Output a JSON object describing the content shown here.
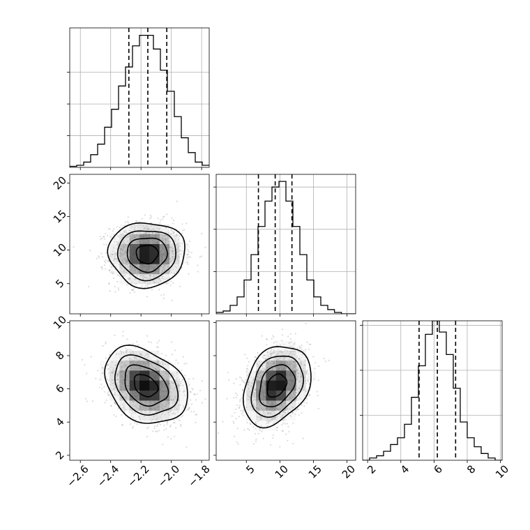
{
  "chart_data": {
    "type": "corner",
    "parameters": [
      {
        "lim": [
          -2.67,
          -1.75
        ],
        "ticks": [
          -2.6,
          -2.4,
          -2.2,
          -2.0,
          -1.8
        ],
        "tick_labels": [
          "−2.6",
          "−2.4",
          "−2.2",
          "−2.0",
          "−1.8"
        ],
        "quantiles": [
          -2.28,
          -2.155,
          -2.03
        ],
        "hist": {
          "edges": [
            -2.67,
            -2.624,
            -2.578,
            -2.532,
            -2.486,
            -2.44,
            -2.394,
            -2.348,
            -2.302,
            -2.256,
            -2.21,
            -2.164,
            -2.118,
            -2.072,
            -2.026,
            -1.98,
            -1.934,
            -1.888,
            -1.842,
            -1.796,
            -1.75
          ],
          "counts": [
            1,
            2,
            5,
            12,
            22,
            38,
            55,
            77,
            95,
            115,
            125,
            125,
            112,
            92,
            72,
            48,
            28,
            14,
            5,
            2
          ]
        },
        "hist_ylim": [
          0,
          132
        ],
        "hist_yticks": [
          30,
          60,
          90
        ]
      },
      {
        "lim": [
          0.5,
          21.3
        ],
        "ticks": [
          5,
          10,
          15,
          20
        ],
        "tick_labels": [
          "5",
          "10",
          "15",
          "20"
        ],
        "quantiles": [
          6.8,
          9.3,
          11.8
        ],
        "hist": {
          "edges": [
            0.5,
            1.54,
            2.58,
            3.62,
            4.66,
            5.7,
            6.74,
            7.78,
            8.82,
            9.86,
            10.9,
            11.94,
            12.98,
            14.02,
            15.06,
            16.1,
            17.14,
            18.14,
            19.18,
            20.22,
            21.26
          ],
          "counts": [
            1,
            2,
            6,
            12,
            24,
            42,
            62,
            80,
            90,
            94,
            80,
            62,
            42,
            24,
            12,
            6,
            3,
            1,
            0,
            0
          ]
        },
        "hist_ylim": [
          0,
          99
        ],
        "hist_yticks": [
          30,
          60,
          90
        ]
      },
      {
        "lim": [
          1.7,
          10.1
        ],
        "ticks": [
          2,
          4,
          6,
          8,
          10
        ],
        "tick_labels": [
          "2",
          "4",
          "6",
          "8",
          "10"
        ],
        "quantiles": [
          5.1,
          6.2,
          7.3
        ],
        "hist": {
          "edges": [
            1.7,
            2.12,
            2.54,
            2.96,
            3.38,
            3.8,
            4.22,
            4.64,
            5.06,
            5.48,
            5.9,
            6.32,
            6.74,
            7.16,
            7.58,
            8.0,
            8.42,
            8.84,
            9.26,
            9.68,
            10.1
          ],
          "counts": [
            0,
            1,
            2,
            4,
            7,
            10,
            16,
            28,
            42,
            56,
            62,
            57,
            47,
            32,
            17,
            10,
            6,
            3,
            1,
            0
          ]
        },
        "hist_ylim": [
          0,
          62
        ],
        "hist_yticks": [
          20,
          40,
          60
        ]
      }
    ],
    "pairs": [
      {
        "x_param": 0,
        "y_param": 1,
        "mean": [
          -2.16,
          9.4
        ],
        "std": [
          0.12,
          2.3
        ],
        "corr": 0.0,
        "contour_levels": [
          0.6,
          1.1,
          1.6,
          2.1
        ]
      },
      {
        "x_param": 0,
        "y_param": 2,
        "mean": [
          -2.17,
          6.2
        ],
        "std": [
          0.13,
          1.1
        ],
        "corr": -0.3,
        "contour_levels": [
          0.6,
          1.1,
          1.6,
          2.1
        ]
      },
      {
        "x_param": 1,
        "y_param": 2,
        "mean": [
          9.5,
          6.2
        ],
        "std": [
          2.4,
          1.15
        ],
        "corr": 0.3,
        "contour_levels": [
          0.6,
          1.1,
          1.6,
          2.1
        ]
      }
    ],
    "colors": {
      "line": "#000000",
      "grid": "#b0b0b0",
      "scatter": "#7f7f7f"
    },
    "grid": true,
    "title": "",
    "xlabel": "",
    "ylabel": ""
  }
}
